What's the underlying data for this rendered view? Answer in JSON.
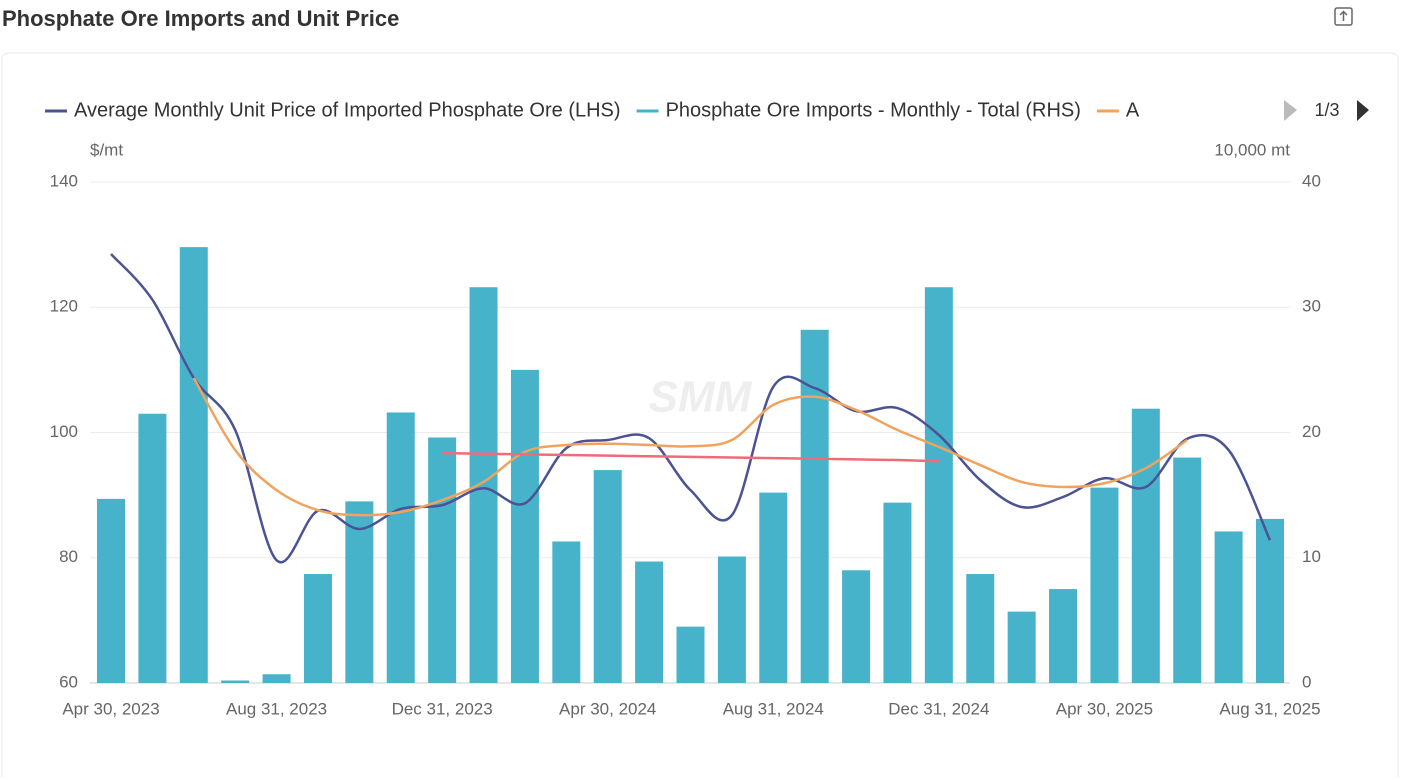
{
  "chart_data": {
    "type": "bar-line",
    "title": "Phosphate Ore Imports and Unit Price",
    "y_label": "$/mt",
    "y2_label": "10,000 mt",
    "watermark": "SMM",
    "legend_page": "1/3",
    "categories": [
      "Apr 30, 2023",
      null,
      null,
      null,
      "Aug 31, 2023",
      null,
      null,
      null,
      "Dec 31, 2023",
      null,
      null,
      null,
      "Apr 30, 2024",
      null,
      null,
      null,
      "Aug 31, 2024",
      null,
      null,
      null,
      "Dec 31, 2024",
      null,
      null,
      null,
      "Apr 30, 2025",
      null,
      null,
      null,
      "Aug 31, 2025"
    ],
    "ylim": [
      60,
      140
    ],
    "yticks": [
      60,
      80,
      100,
      120,
      140
    ],
    "y2lim": [
      0,
      40
    ],
    "y2ticks": [
      0,
      10,
      20,
      30,
      40
    ],
    "grid": true,
    "series": [
      {
        "name": "Average Monthly Unit Price of Imported Phosphate Ore (LHS)",
        "type": "line",
        "color": "#4b5394",
        "values": [
          128.5,
          121.2,
          108.7,
          100.4,
          79.6,
          87.5,
          84.6,
          87.8,
          88.4,
          91.1,
          88.7,
          97.5,
          98.8,
          99.1,
          90.8,
          86.8,
          107.3,
          107.1,
          103.4,
          103.9,
          99.6,
          92.4,
          88.1,
          89.7,
          92.7,
          91.3,
          99.0,
          97.2,
          82.8
        ]
      },
      {
        "name": "Phosphate Ore Imports - Monthly - Total (RHS)",
        "type": "bar",
        "axis": "y2",
        "color": "#47b3cb",
        "values": [
          14.7,
          21.5,
          34.8,
          0.2,
          0.7,
          8.7,
          14.5,
          21.6,
          19.6,
          31.6,
          25.0,
          11.3,
          17.0,
          9.7,
          4.5,
          10.1,
          15.2,
          28.2,
          9.0,
          14.4,
          31.6,
          8.7,
          5.7,
          7.5,
          15.6,
          21.9,
          18.0,
          12.1,
          13.1
        ]
      },
      {
        "name": "A",
        "type": "line",
        "color": "#f0a35e",
        "values": [
          null,
          null,
          108.7,
          97.2,
          90.8,
          87.6,
          86.8,
          87.3,
          89.2,
          92.1,
          96.9,
          98.0,
          98.2,
          98.0,
          97.8,
          98.8,
          104.4,
          105.7,
          103.6,
          100.4,
          97.7,
          94.8,
          92.1,
          91.3,
          91.9,
          94.3,
          98.8,
          null,
          null
        ]
      },
      {
        "type": "line",
        "straight": true,
        "color": "#f06b78",
        "values": [
          null,
          null,
          null,
          null,
          null,
          null,
          null,
          null,
          96.7,
          96.6,
          96.5,
          96.4,
          96.3,
          96.2,
          96.1,
          96.0,
          95.9,
          95.8,
          95.7,
          95.6,
          95.4,
          null,
          null,
          null,
          null,
          null,
          null,
          null,
          null
        ]
      }
    ]
  }
}
